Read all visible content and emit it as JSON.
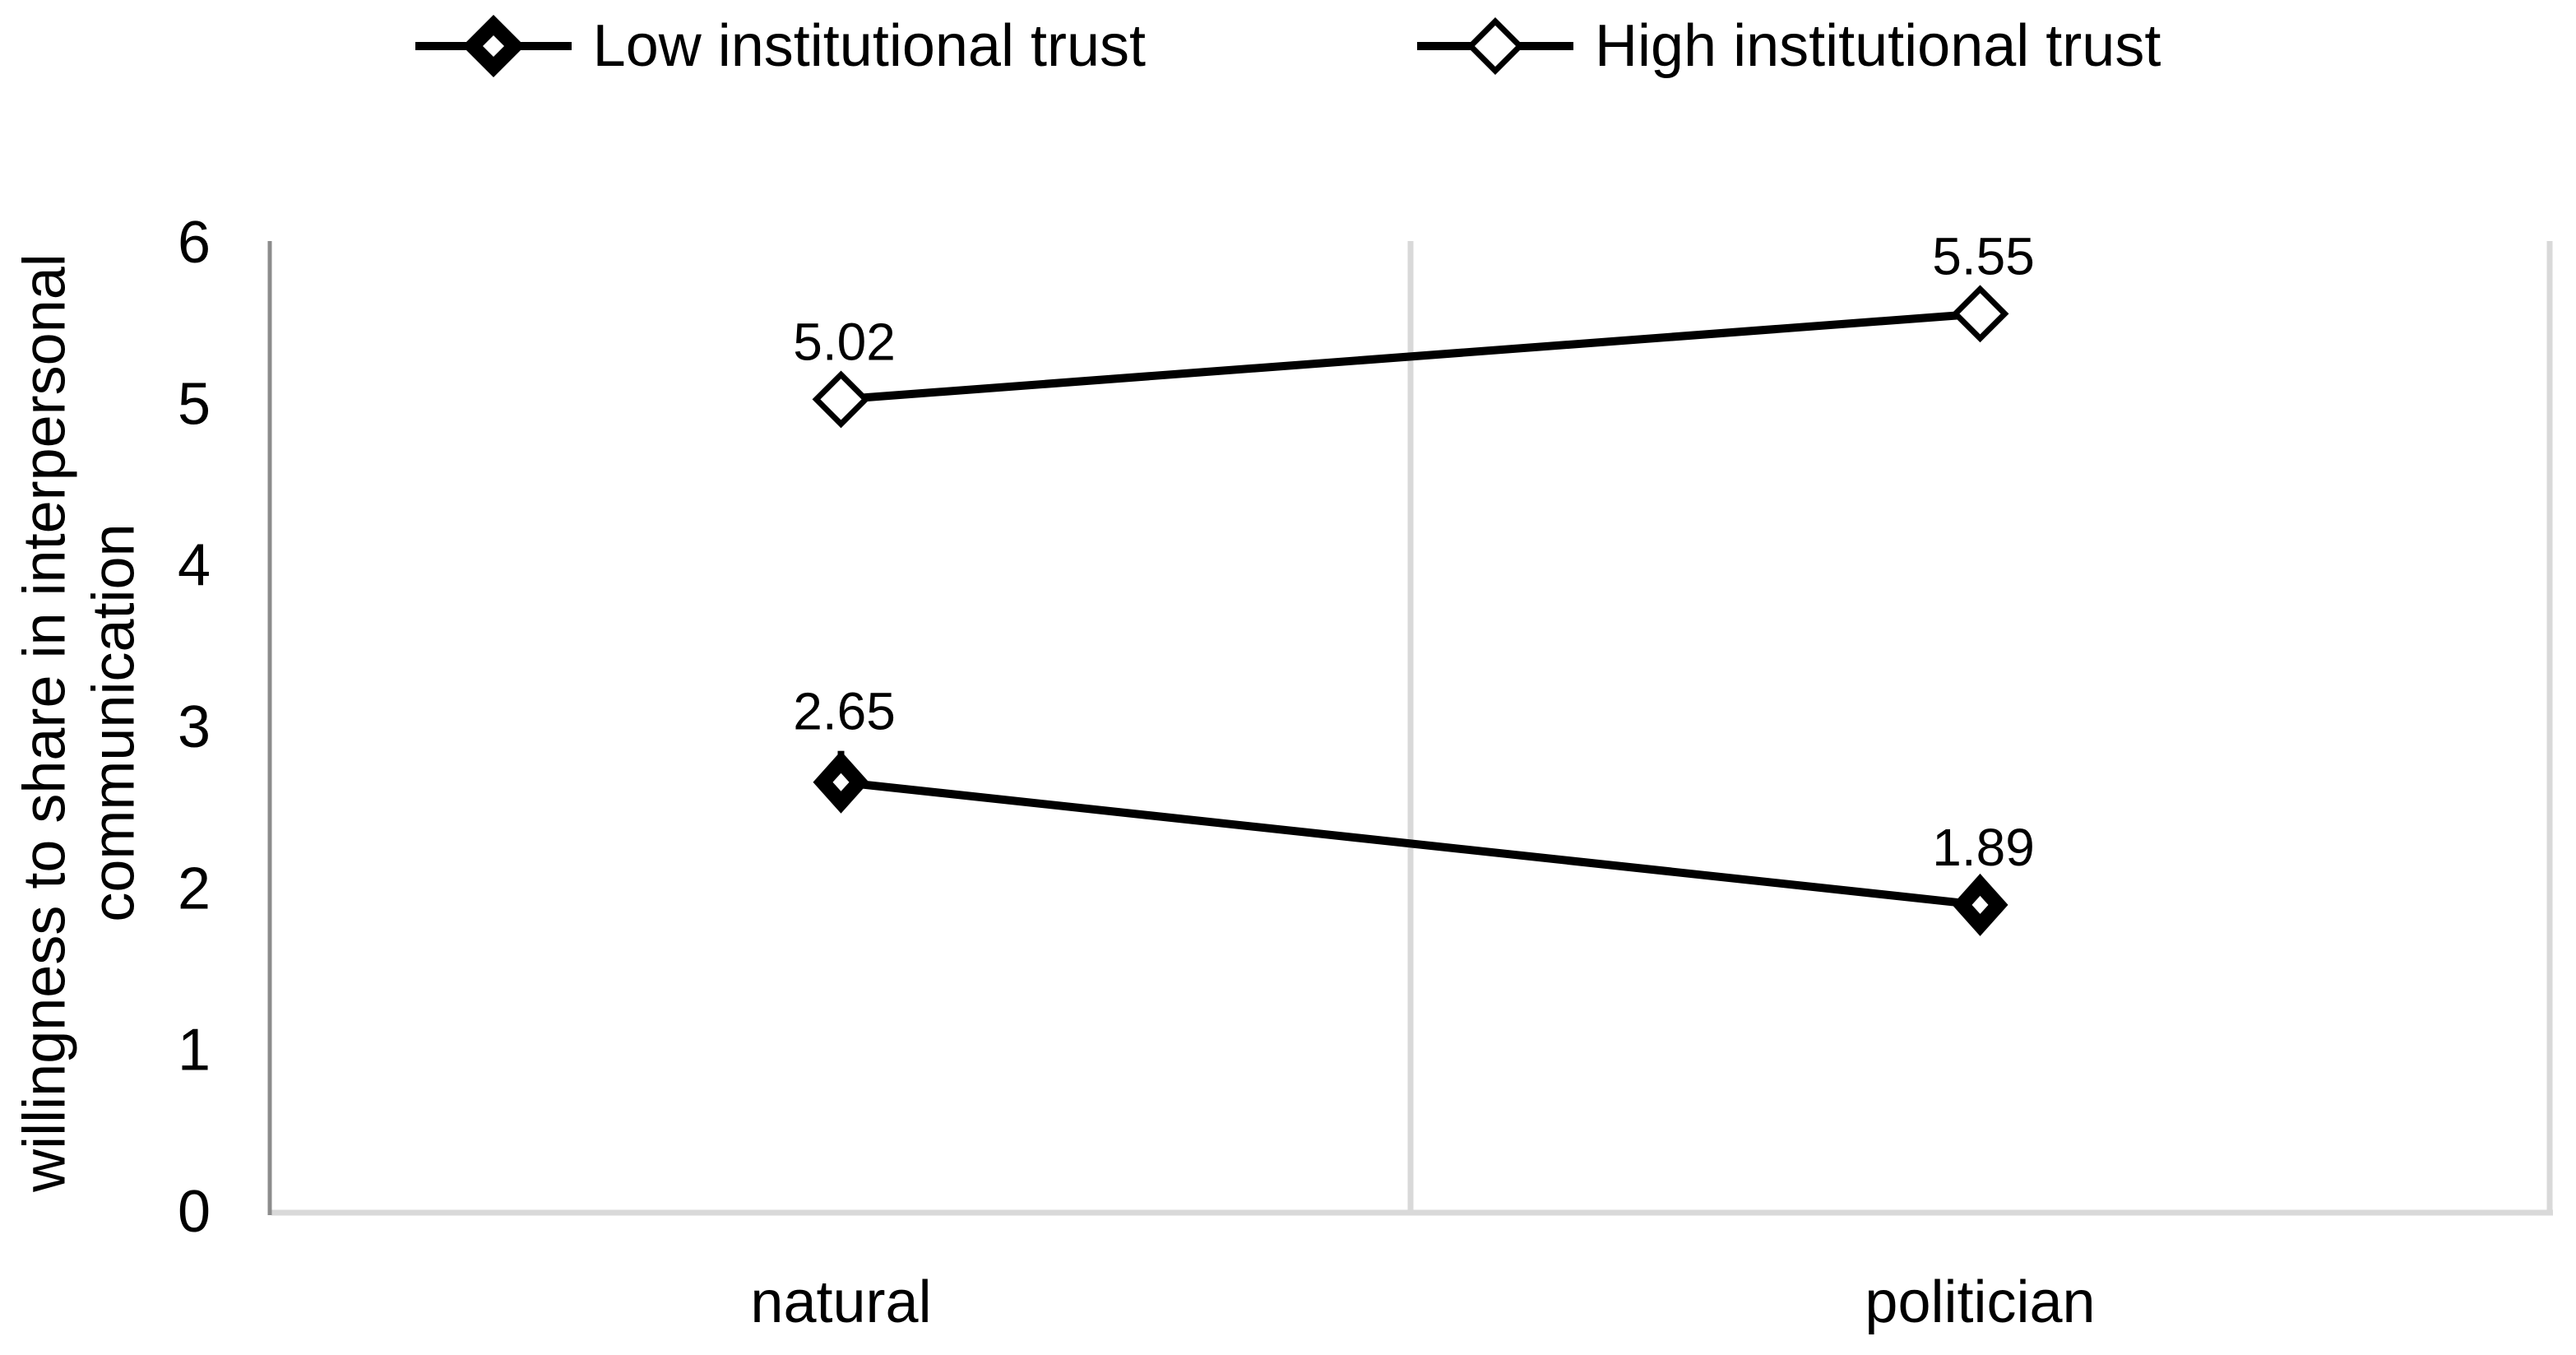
{
  "chart_data": {
    "type": "line",
    "title": "",
    "categories": [
      "natural",
      "politician"
    ],
    "series": [
      {
        "name": "Low institutional trust",
        "values": [
          2.65,
          1.89
        ],
        "labels": [
          "2.65",
          "1.89"
        ],
        "marker": "diamond-filled",
        "color": "#000000"
      },
      {
        "name": "High institutional trust",
        "values": [
          5.02,
          5.55
        ],
        "labels": [
          "5.02",
          "5.55"
        ],
        "marker": "diamond-open",
        "color": "#000000"
      }
    ],
    "xlabel": "",
    "ylabel": "willingness to share in interpersonal communication",
    "ylabel_lines": [
      "willingness to share in interpersonal",
      "communication"
    ],
    "ylim": [
      0,
      6
    ],
    "yticks": [
      0,
      1,
      2,
      3,
      4,
      5,
      6
    ],
    "legend_position": "top",
    "grid": {
      "vertical_category_boundaries": true,
      "horizontal": false
    },
    "colors": {
      "axis_line": "#8c8c8c",
      "gridline": "#d9d9d9",
      "series": "#000000",
      "background": "#ffffff"
    },
    "label_leader_stub": {
      "series": "Low institutional trust",
      "category": "natural"
    }
  }
}
